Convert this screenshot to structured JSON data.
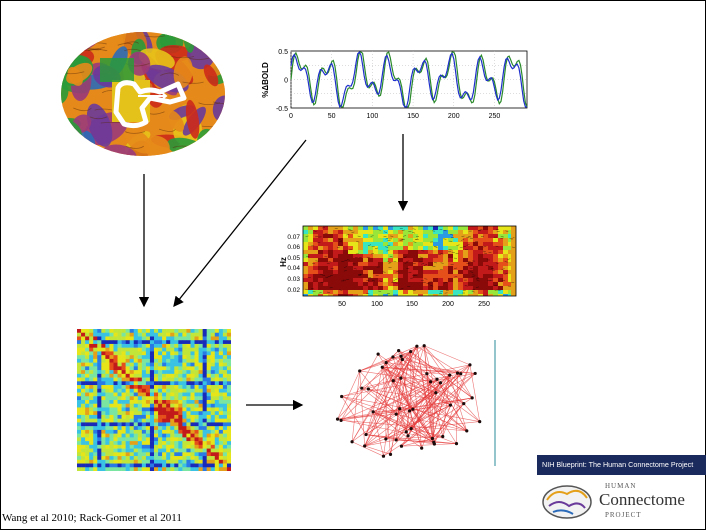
{
  "citation": "Wang et al 2010; Rack-Gomer et al 2011",
  "banner": "NIH Blueprint: The Human Connectome Project",
  "logo": {
    "top": "HUMAN",
    "main": "Connectome",
    "bottom": "PROJECT"
  },
  "chart_data": [
    {
      "type": "line",
      "ylabel": "%ΔBOLD",
      "xlim": [
        0,
        290
      ],
      "ylim": [
        -0.5,
        0.5
      ],
      "xticks": [
        0,
        50,
        100,
        150,
        200,
        250
      ],
      "yticks": [
        0.5,
        0,
        -0.5
      ],
      "colors": [
        "#2a8a2a",
        "#1e2fcc"
      ],
      "grid": true
    },
    {
      "type": "heatmap",
      "ylabel": "Hz",
      "xticks": [
        50,
        100,
        150,
        200,
        250
      ],
      "yticks": [
        "0.07",
        "0.06",
        "0.05",
        "0.04",
        "0.03",
        "0.02"
      ]
    }
  ]
}
